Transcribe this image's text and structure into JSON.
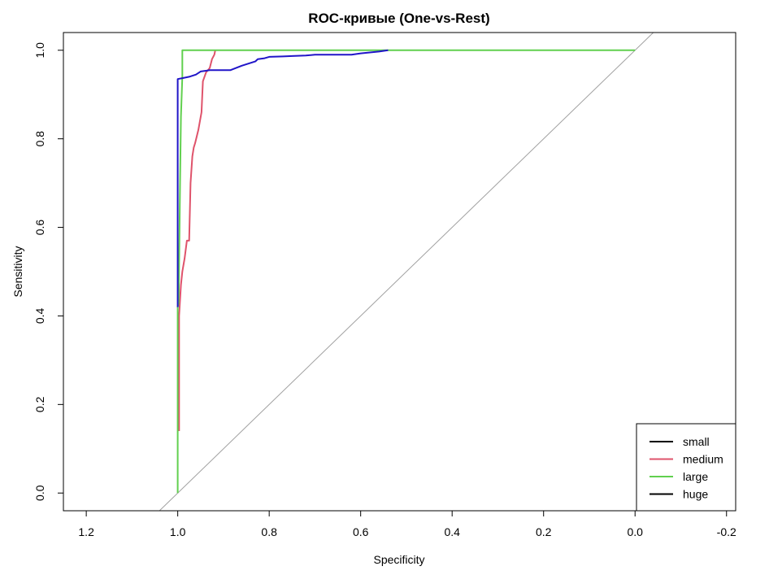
{
  "chart_data": {
    "type": "line",
    "title": "ROC-кривые (One-vs-Rest)",
    "xlabel": "Specificity",
    "ylabel": "Sensitivity",
    "xlim": [
      1.25,
      -0.22
    ],
    "ylim": [
      -0.04,
      1.04
    ],
    "x_reversed": true,
    "x_ticks": [
      1.2,
      1.0,
      0.8,
      0.6,
      0.4,
      0.2,
      0.0,
      -0.2
    ],
    "x_tick_labels": [
      "1.2",
      "1.0",
      "0.8",
      "0.6",
      "0.4",
      "0.2",
      "0.0",
      "-0.2"
    ],
    "y_ticks": [
      0.0,
      0.2,
      0.4,
      0.6,
      0.8,
      1.0
    ],
    "y_tick_labels": [
      "0.0",
      "0.2",
      "0.4",
      "0.6",
      "0.8",
      "1.0"
    ],
    "grid": false,
    "legend_position": "bottom-right",
    "reference_line": {
      "from": [
        1.0,
        0.0
      ],
      "to": [
        0.0,
        1.0
      ],
      "color": "#a0a0a0"
    },
    "series": [
      {
        "name": "small",
        "color": "#000000",
        "x": [
          1.0,
          1.0
        ],
        "y": [
          0.42,
          0.42
        ]
      },
      {
        "name": "medium",
        "color": "#df536b",
        "x": [
          0.997,
          0.997,
          0.993,
          0.99,
          0.985,
          0.98,
          0.975,
          0.972,
          0.968,
          0.965,
          0.962,
          0.955,
          0.948,
          0.945,
          0.938,
          0.93,
          0.925,
          0.92,
          0.918
        ],
        "y": [
          0.14,
          0.4,
          0.47,
          0.5,
          0.53,
          0.57,
          0.57,
          0.7,
          0.76,
          0.78,
          0.79,
          0.82,
          0.86,
          0.93,
          0.95,
          0.96,
          0.98,
          0.99,
          1.0
        ]
      },
      {
        "name": "large",
        "color": "#61d04f",
        "x": [
          1.0,
          1.0,
          0.998,
          0.995,
          0.993,
          0.99,
          0.99,
          0.0
        ],
        "y": [
          0.0,
          0.42,
          0.43,
          0.7,
          0.85,
          0.94,
          1.0,
          1.0
        ]
      },
      {
        "name": "huge",
        "color": "#000000",
        "x": [
          1.0,
          1.0
        ],
        "y": [
          0.42,
          0.42
        ]
      },
      {
        "name": "",
        "color": "#2015c8",
        "x": [
          1.0,
          1.0,
          0.99,
          0.975,
          0.96,
          0.95,
          0.93,
          0.885,
          0.86,
          0.83,
          0.825,
          0.81,
          0.8,
          0.77,
          0.75,
          0.72,
          0.7,
          0.65,
          0.62,
          0.6,
          0.58,
          0.56,
          0.54
        ],
        "y": [
          0.42,
          0.935,
          0.937,
          0.94,
          0.945,
          0.952,
          0.955,
          0.955,
          0.965,
          0.975,
          0.98,
          0.982,
          0.985,
          0.986,
          0.987,
          0.988,
          0.99,
          0.99,
          0.99,
          0.993,
          0.995,
          0.997,
          1.0
        ]
      }
    ],
    "legend": [
      {
        "name": "small",
        "color": "#000000"
      },
      {
        "name": "medium",
        "color": "#df536b"
      },
      {
        "name": "large",
        "color": "#61d04f"
      },
      {
        "name": "huge",
        "color": "#000000"
      }
    ]
  }
}
